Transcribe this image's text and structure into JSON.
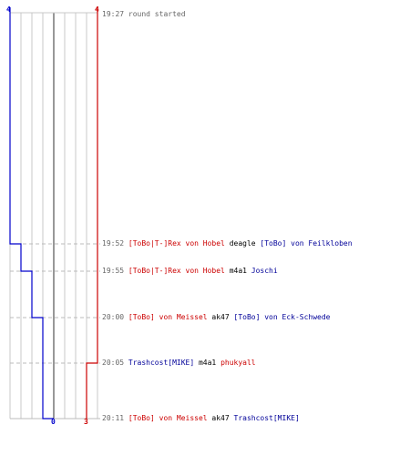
{
  "scoreboard": {
    "blue_start": "4",
    "red_start": "4",
    "blue_end": "0",
    "red_end": "3"
  },
  "events": [
    {
      "time": "19:27",
      "parts": [
        {
          "text": "round started",
          "color": "gray"
        }
      ]
    },
    {
      "time": "19:52",
      "parts": [
        {
          "text": "[ToBo|T-]Rex von Hobel",
          "color": "red"
        },
        {
          "text": " deagle ",
          "color": "black"
        },
        {
          "text": "[ToBo] von Feilkloben",
          "color": "blue"
        }
      ]
    },
    {
      "time": "19:55",
      "parts": [
        {
          "text": "[ToBo|T-]Rex von Hobel",
          "color": "red"
        },
        {
          "text": " m4a1 ",
          "color": "black"
        },
        {
          "text": "Joschi",
          "color": "blue"
        }
      ]
    },
    {
      "time": "20:00",
      "parts": [
        {
          "text": "[ToBo] von Meissel",
          "color": "red"
        },
        {
          "text": " ak47 ",
          "color": "black"
        },
        {
          "text": "[ToBo] von Eck-Schwede",
          "color": "blue"
        }
      ]
    },
    {
      "time": "20:05",
      "parts": [
        {
          "text": "Trashcost[MIKE]",
          "color": "blue"
        },
        {
          "text": " m4a1 ",
          "color": "black"
        },
        {
          "text": "phukyall",
          "color": "red"
        }
      ]
    },
    {
      "time": "20:11",
      "parts": [
        {
          "text": "[ToBo] von Meissel",
          "color": "red"
        },
        {
          "text": " ak47 ",
          "color": "black"
        },
        {
          "text": "Trashcost[MIKE]",
          "color": "blue"
        }
      ]
    }
  ],
  "chart_data": {
    "type": "line",
    "x": [
      "19:27",
      "19:52",
      "19:55",
      "20:00",
      "20:05",
      "20:11"
    ],
    "series": [
      {
        "color": "#0000cc",
        "values": [
          4,
          3,
          2,
          1,
          1,
          0
        ]
      },
      {
        "color": "#cc0000",
        "values": [
          4,
          4,
          4,
          4,
          3,
          3
        ]
      }
    ],
    "ylim": [
      0,
      4
    ],
    "grid": true
  },
  "colors": {
    "blue": "#000099",
    "red": "#cc0000",
    "gray": "#666666",
    "black": "#000000"
  }
}
